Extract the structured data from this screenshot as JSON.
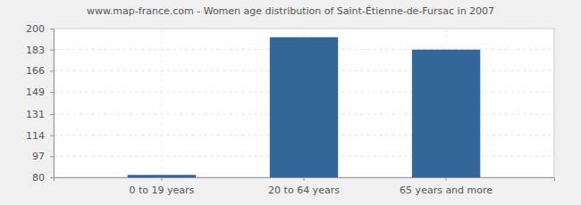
{
  "chart_data": {
    "type": "bar",
    "title": "www.map-france.com - Women age distribution of Saint-Étienne-de-Fursac in 2007",
    "categories": [
      "0 to 19 years",
      "20 to 64 years",
      "65 years and more"
    ],
    "values": [
      82,
      193,
      183
    ],
    "color": "#336699",
    "ylim": [
      80,
      200
    ],
    "yticks": [
      80,
      97,
      114,
      131,
      149,
      166,
      183,
      200
    ],
    "grid": true
  }
}
